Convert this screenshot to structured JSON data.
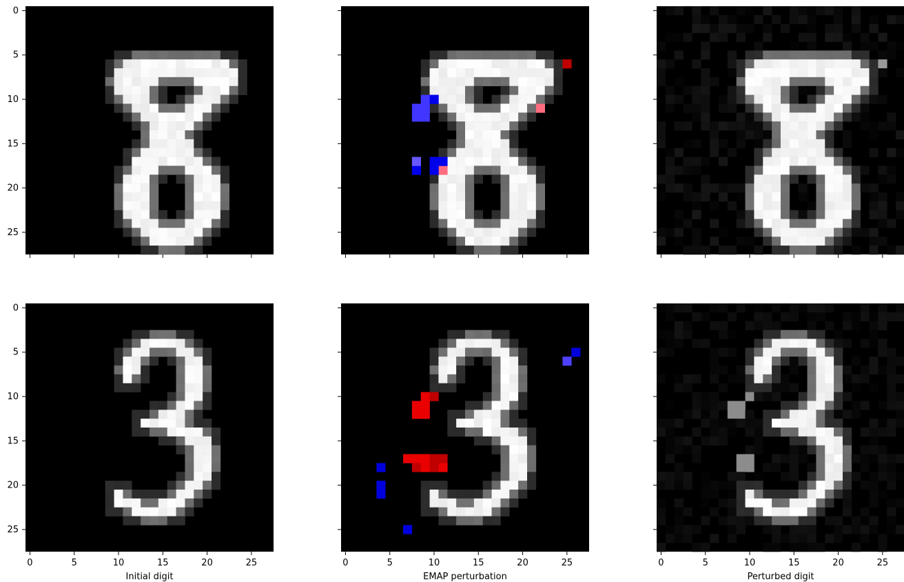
{
  "chart_data": {
    "type": "heatmap",
    "layout": "2 rows x 3 columns, shared x and y axes",
    "grid": false,
    "image_size": 28,
    "x_range": [
      -0.5,
      27.5
    ],
    "y_range": [
      -0.5,
      27.5
    ],
    "x_ticks": [
      0,
      5,
      10,
      15,
      20,
      25
    ],
    "y_ticks": [
      0,
      5,
      10,
      15,
      20,
      25
    ],
    "x_tick_labels": [
      "0",
      "5",
      "10",
      "15",
      "20",
      "25"
    ],
    "y_tick_labels": [
      "0",
      "5",
      "10",
      "15",
      "20",
      "25"
    ],
    "column_titles": [
      "Initial digit",
      "EMAP perturbation",
      "Perturbed digit"
    ],
    "colors": {
      "background": "#000000",
      "increase": "#ff0000",
      "decrease": "#0000ff"
    },
    "panels": [
      {
        "row": 0,
        "col": 0,
        "kind": "grayscale",
        "digit": "8",
        "base_rows": [
          "............................",
          "............................",
          "............................",
          "............................",
          "............................",
          "............................",
          "...........############.....",
          "..........##############....",
          "..........#####....#####....",
          "..........####......###.....",
          "...........###.....###......",
          "............###...###.......",
          ".............#######........",
          "..............#####.........",
          "..............####..........",
          "..............#####.........",
          ".............######.........",
          "............########........",
          "............###...###.......",
          "...........###.....###......",
          "...........###.....###......",
          "...........###.....###......",
          "...........###.....###......",
          "...........###.....###......",
          "............###...###.......",
          ".............#######........",
          "..............#####.........",
          "............................"
        ],
        "noise": 0
      },
      {
        "row": 0,
        "col": 1,
        "kind": "perturbation",
        "digit": "8",
        "base_rows_from_panel": 0,
        "overlay": [
          {
            "cells": [
              [
                25,
                6
              ]
            ],
            "sign": "increase",
            "strength": 0.55
          },
          {
            "cells": [
              [
                22,
                11
              ]
            ],
            "sign": "increase",
            "strength": 0.15
          },
          {
            "cells": [
              [
                11,
                18
              ]
            ],
            "sign": "increase",
            "strength": 0.15
          },
          {
            "cells": [
              [
                8,
                11
              ],
              [
                9,
                11
              ],
              [
                8,
                12
              ],
              [
                9,
                12
              ],
              [
                9,
                10
              ]
            ],
            "sign": "decrease",
            "strength": 0.4
          },
          {
            "cells": [
              [
                10,
                10
              ],
              [
                10,
                17
              ],
              [
                11,
                17
              ],
              [
                10,
                18
              ],
              [
                8,
                18
              ]
            ],
            "sign": "decrease",
            "strength": 0.85
          },
          {
            "cells": [
              [
                8,
                17
              ]
            ],
            "sign": "decrease",
            "strength": 0.25
          }
        ]
      },
      {
        "row": 0,
        "col": 2,
        "kind": "grayscale",
        "digit": "8",
        "base_rows": [
          "............................",
          "............................",
          "............................",
          "............................",
          "............................",
          "............................",
          "...........############.....",
          "..........##############....",
          "..........#####....#####....",
          "..........####......###.....",
          "...........###.....###......",
          "............###...###.......",
          ".............#######........",
          "..............#####.........",
          "..............####..........",
          "..............#####.........",
          ".............######.........",
          "............########........",
          "............###...###.......",
          "...........###.....###......",
          "...........###.....###......",
          "...........###.....###......",
          "...........###.....###......",
          "...........###.....###......",
          "............###...###.......",
          ".............#######........",
          "..............#####.........",
          "............................"
        ],
        "noise": 0.09,
        "bright_spots": [
          [
            25,
            6
          ]
        ]
      },
      {
        "row": 1,
        "col": 0,
        "kind": "grayscale",
        "digit": "3",
        "base_rows": [
          "............................",
          "............................",
          "............................",
          "............................",
          ".............#####..........",
          "............##...##.........",
          "...........##.....##........",
          "...........##.....##........",
          "...........#......##........",
          "..................##........",
          "..................##........",
          ".................##.........",
          "...............###..........",
          ".............#####..........",
          "................####........",
          "..................###.......",
          "...................##.......",
          "...................##.......",
          "...................##.......",
          "...................##.......",
          "..................##........",
          "..........#......##.........",
          "..........###..###..........",
          "............#####...........",
          "............................",
          "............................",
          "............................",
          "............................"
        ],
        "noise": 0
      },
      {
        "row": 1,
        "col": 1,
        "kind": "perturbation",
        "digit": "3",
        "base_rows_from_panel": 3,
        "overlay": [
          {
            "cells": [
              [
                8,
                11
              ],
              [
                9,
                11
              ],
              [
                8,
                12
              ],
              [
                9,
                12
              ],
              [
                9,
                10
              ],
              [
                7,
                17
              ],
              [
                8,
                17
              ],
              [
                9,
                17
              ],
              [
                9,
                18
              ],
              [
                10,
                18
              ],
              [
                11,
                18
              ]
            ],
            "sign": "increase",
            "strength": 0.85
          },
          {
            "cells": [
              [
                10,
                10
              ],
              [
                10,
                17
              ],
              [
                11,
                17
              ],
              [
                10,
                18
              ],
              [
                8,
                18
              ]
            ],
            "sign": "increase",
            "strength": 0.55
          },
          {
            "cells": [
              [
                26,
                5
              ],
              [
                4,
                18
              ],
              [
                4,
                20
              ],
              [
                4,
                21
              ],
              [
                7,
                25
              ]
            ],
            "sign": "decrease",
            "strength": 0.75
          },
          {
            "cells": [
              [
                25,
                6
              ]
            ],
            "sign": "decrease",
            "strength": 0.35
          }
        ]
      },
      {
        "row": 1,
        "col": 2,
        "kind": "grayscale",
        "digit": "3",
        "base_rows": [
          "............................",
          "............................",
          "............................",
          "............................",
          ".............#####..........",
          "............##...##.........",
          "...........##.....##........",
          "...........##.....##........",
          "...........#......##........",
          "..................##........",
          "..................##........",
          ".................##.........",
          "...............###..........",
          ".............#####..........",
          "................####........",
          "..................###.......",
          "...................##.......",
          "...................##.......",
          "...................##.......",
          "...................##.......",
          "..................##........",
          "..........#......##.........",
          "..........###..###..........",
          "............#####...........",
          "............................",
          "............................",
          "............................",
          "............................"
        ],
        "noise": 0.07,
        "extra_gray": [
          [
            8,
            11
          ],
          [
            9,
            11
          ],
          [
            8,
            12
          ],
          [
            9,
            12
          ],
          [
            10,
            10
          ],
          [
            9,
            17
          ],
          [
            10,
            17
          ],
          [
            9,
            18
          ],
          [
            10,
            18
          ]
        ]
      }
    ]
  }
}
